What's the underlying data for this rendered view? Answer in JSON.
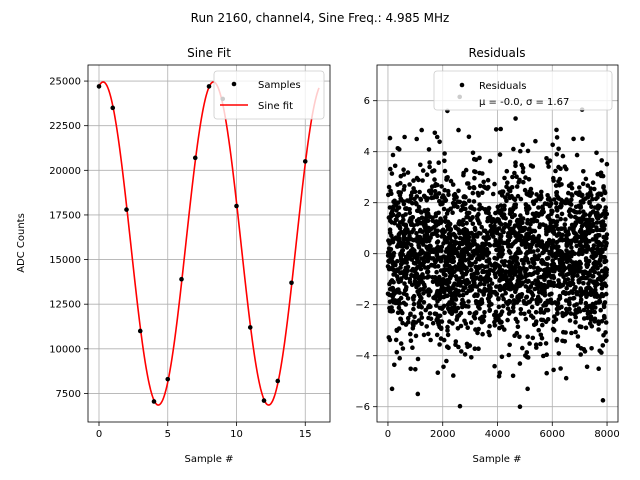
{
  "figure": {
    "suptitle": "Run 2160, channel4, Sine Freq.: 4.985 MHz"
  },
  "chart_data": [
    {
      "type": "line",
      "title": "Sine Fit",
      "xlabel": "Sample #",
      "ylabel": "ADC Counts",
      "xlim": [
        -0.8,
        16.8
      ],
      "ylim": [
        5900,
        25900
      ],
      "xticks": [
        0,
        5,
        10,
        15
      ],
      "yticks": [
        7500,
        10000,
        12500,
        15000,
        17500,
        20000,
        22500,
        25000
      ],
      "grid": true,
      "legend": {
        "placement": "top-right",
        "entries": [
          "Samples",
          "Sine fit"
        ]
      },
      "colors": {
        "samples": "#000000",
        "fit": "#ff0000"
      },
      "series": [
        {
          "name": "Samples",
          "style": "points",
          "x": [
            0,
            1,
            2,
            3,
            4,
            5,
            6,
            7,
            8,
            9,
            10,
            11,
            12,
            13,
            14,
            15
          ],
          "y": [
            24700,
            23500,
            17800,
            11000,
            7050,
            8300,
            13900,
            20700,
            24700,
            24000,
            18000,
            11200,
            7100,
            8200,
            13700,
            20500
          ]
        },
        {
          "name": "Sine fit",
          "style": "line",
          "model": {
            "offset": 15900,
            "amplitude": 9050,
            "period": 8.0232,
            "phase_sample": 0.3,
            "x_range": [
              0,
              16
            ]
          }
        }
      ]
    },
    {
      "type": "scatter",
      "title": "Residuals",
      "xlabel": "Sample #",
      "ylabel": "",
      "xlim": [
        -400,
        8400
      ],
      "ylim": [
        -6.6,
        7.4
      ],
      "xticks": [
        0,
        2000,
        4000,
        6000,
        8000
      ],
      "yticks": [
        -6,
        -4,
        -2,
        0,
        2,
        4,
        6
      ],
      "grid": true,
      "legend": {
        "placement": "top-right",
        "entries": [
          "Residuals"
        ],
        "stats": "μ = -0.0, σ = 1.67"
      },
      "colors": {
        "points": "#000000"
      },
      "series": [
        {
          "name": "Residuals",
          "distribution": {
            "count": 8000,
            "x_range": [
              0,
              7999
            ],
            "mean": 0.0,
            "std": 1.67
          },
          "notable_points": [
            {
              "x": 2620,
              "y": 6.15
            },
            {
              "x": 2170,
              "y": 5.6
            },
            {
              "x": 4660,
              "y": 5.3
            },
            {
              "x": 7090,
              "y": 5.65
            },
            {
              "x": 4820,
              "y": -6.0
            },
            {
              "x": 2630,
              "y": -5.98
            },
            {
              "x": 150,
              "y": -5.3
            },
            {
              "x": 7850,
              "y": -5.75
            },
            {
              "x": 5100,
              "y": -5.3
            },
            {
              "x": 1090,
              "y": -5.5
            }
          ]
        }
      ]
    }
  ]
}
